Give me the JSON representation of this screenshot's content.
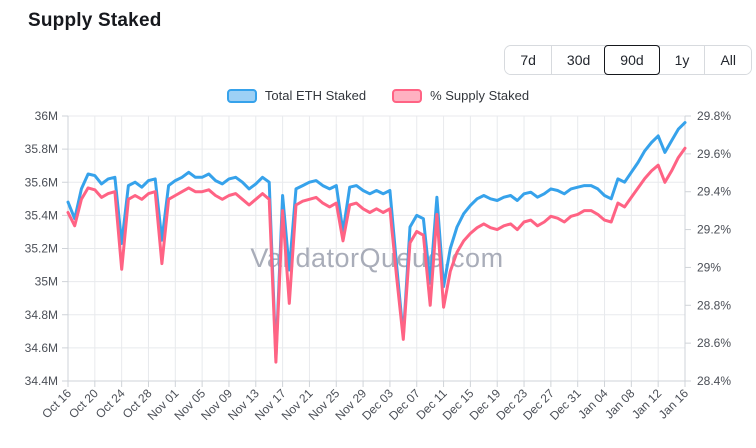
{
  "page": {
    "title": "Supply Staked"
  },
  "time_range": {
    "options": [
      "7d",
      "30d",
      "90d",
      "1y",
      "All"
    ],
    "selected": "90d"
  },
  "legend": [
    {
      "label": "Total ETH Staked",
      "color": "#36a2eb",
      "fill": "#9dd0f5"
    },
    {
      "label": "% Supply Staked",
      "color": "#ff6384",
      "fill": "#ffb1c1"
    }
  ],
  "watermark": "ValidatorQueue.com",
  "colors": {
    "grid": "#e8eaed",
    "axis_border": "#cfd3d8",
    "tick_text": "#4b4f57",
    "watermark": "#9499a8"
  },
  "chart_data": {
    "type": "line",
    "interval": "daily",
    "points_per_tick": 4,
    "x_tick_labels": [
      "Oct 16",
      "Oct 20",
      "Oct 24",
      "Oct 28",
      "Nov 01",
      "Nov 05",
      "Nov 09",
      "Nov 13",
      "Nov 17",
      "Nov 21",
      "Nov 25",
      "Nov 29",
      "Dec 03",
      "Dec 07",
      "Dec 11",
      "Dec 15",
      "Dec 19",
      "Dec 23",
      "Dec 27",
      "Dec 31",
      "Jan 04",
      "Jan 08",
      "Jan 12",
      "Jan 16"
    ],
    "left_axis": {
      "min": 34.4,
      "max": 36.0,
      "tick_labels": [
        "36M",
        "35.8M",
        "35.6M",
        "35.4M",
        "35.2M",
        "35M",
        "34.8M",
        "34.6M",
        "34.4M"
      ]
    },
    "right_axis": {
      "min": 28.4,
      "max": 29.8,
      "tick_labels": [
        "29.8%",
        "29.6%",
        "29.4%",
        "29.2%",
        "29%",
        "28.8%",
        "28.6%",
        "28.4%"
      ]
    },
    "grid": true,
    "legend_position": "top",
    "series": [
      {
        "name": "Total ETH Staked",
        "axis": "left",
        "color": "#36a2eb",
        "values": [
          35.48,
          35.38,
          35.56,
          35.65,
          35.64,
          35.59,
          35.62,
          35.63,
          35.23,
          35.58,
          35.6,
          35.57,
          35.61,
          35.62,
          35.25,
          35.58,
          35.61,
          35.63,
          35.66,
          35.63,
          35.63,
          35.65,
          35.61,
          35.59,
          35.62,
          35.63,
          35.6,
          35.56,
          35.59,
          35.63,
          35.6,
          34.54,
          35.52,
          35.07,
          35.56,
          35.58,
          35.6,
          35.61,
          35.58,
          35.56,
          35.58,
          35.3,
          35.57,
          35.58,
          35.55,
          35.53,
          35.55,
          35.53,
          35.55,
          35.1,
          34.67,
          35.33,
          35.4,
          35.38,
          34.99,
          35.51,
          34.97,
          35.2,
          35.33,
          35.41,
          35.46,
          35.5,
          35.52,
          35.5,
          35.49,
          35.51,
          35.52,
          35.49,
          35.53,
          35.54,
          35.51,
          35.53,
          35.56,
          35.55,
          35.53,
          35.56,
          35.57,
          35.58,
          35.58,
          35.56,
          35.52,
          35.5,
          35.62,
          35.6,
          35.66,
          35.72,
          35.79,
          35.84,
          35.88,
          35.78,
          35.85,
          35.92,
          35.96
        ]
      },
      {
        "name": "% Supply Staked",
        "axis": "right",
        "color": "#ff6384",
        "values": [
          29.29,
          29.22,
          29.36,
          29.42,
          29.41,
          29.37,
          29.39,
          29.4,
          28.99,
          29.36,
          29.38,
          29.36,
          29.39,
          29.4,
          29.02,
          29.36,
          29.38,
          29.4,
          29.42,
          29.4,
          29.4,
          29.41,
          29.38,
          29.36,
          29.38,
          29.39,
          29.36,
          29.33,
          29.36,
          29.39,
          29.36,
          28.5,
          29.3,
          28.81,
          29.33,
          29.35,
          29.36,
          29.37,
          29.34,
          29.32,
          29.34,
          29.14,
          29.33,
          29.34,
          29.31,
          29.29,
          29.31,
          29.29,
          29.31,
          28.95,
          28.62,
          29.13,
          29.19,
          29.17,
          28.8,
          29.28,
          28.79,
          28.98,
          29.08,
          29.14,
          29.18,
          29.21,
          29.23,
          29.21,
          29.2,
          29.22,
          29.23,
          29.2,
          29.24,
          29.25,
          29.22,
          29.24,
          29.27,
          29.26,
          29.24,
          29.27,
          29.28,
          29.3,
          29.3,
          29.28,
          29.25,
          29.24,
          29.34,
          29.32,
          29.37,
          29.42,
          29.47,
          29.51,
          29.54,
          29.45,
          29.51,
          29.58,
          29.63
        ]
      }
    ]
  }
}
